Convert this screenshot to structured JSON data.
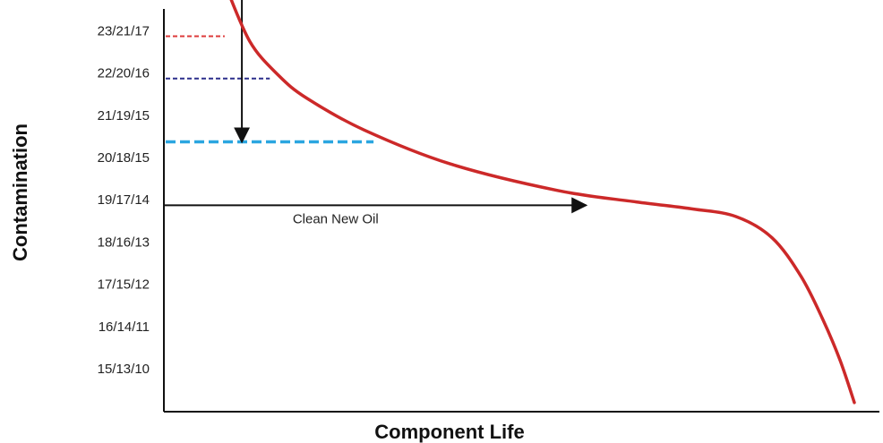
{
  "chart_data": {
    "type": "line",
    "xlabel": "Component Life",
    "ylabel": "Contamination",
    "y_categories": [
      "15/13/10",
      "16/14/11",
      "17/15/12",
      "18/16/13",
      "19/17/14",
      "20/18/15",
      "21/19/15",
      "22/20/16",
      "23/21/17"
    ],
    "x_range": [
      0,
      100
    ],
    "y_range": [
      0,
      9.5
    ],
    "x_ticks_shown": false,
    "grid": false,
    "legend": "none",
    "series": [
      {
        "color": "#cc2929",
        "x": [
          8.5,
          12,
          16,
          20,
          28,
          40,
          55,
          66,
          74,
          80,
          85,
          89,
          92,
          94.5,
          96.5
        ],
        "y": [
          9.12,
          7.75,
          6.95,
          6.4,
          5.65,
          4.85,
          4.22,
          3.95,
          3.78,
          3.6,
          3.1,
          2.2,
          1.2,
          0.2,
          -0.8
        ]
      }
    ],
    "reference_lines": [
      {
        "y": 7.87,
        "x_end": 8.5,
        "style": "dashed-short",
        "color": "#dd3b3b"
      },
      {
        "y": 6.87,
        "x_end": 14.8,
        "style": "dashed-short",
        "color": "#2c2f8c"
      },
      {
        "y": 5.37,
        "x_end": 29.3,
        "style": "dashed-long",
        "color": "#2ba6e0"
      }
    ],
    "arrows": [
      {
        "from": [
          10.9,
          10.3
        ],
        "to": [
          10.9,
          5.37
        ],
        "color": "#111111"
      },
      {
        "from": [
          0,
          3.87
        ],
        "to": [
          59,
          3.87
        ],
        "color": "#111111"
      }
    ],
    "annotations": [
      {
        "text": "Clean New Oil",
        "x": 18,
        "y": 3.87
      }
    ]
  }
}
